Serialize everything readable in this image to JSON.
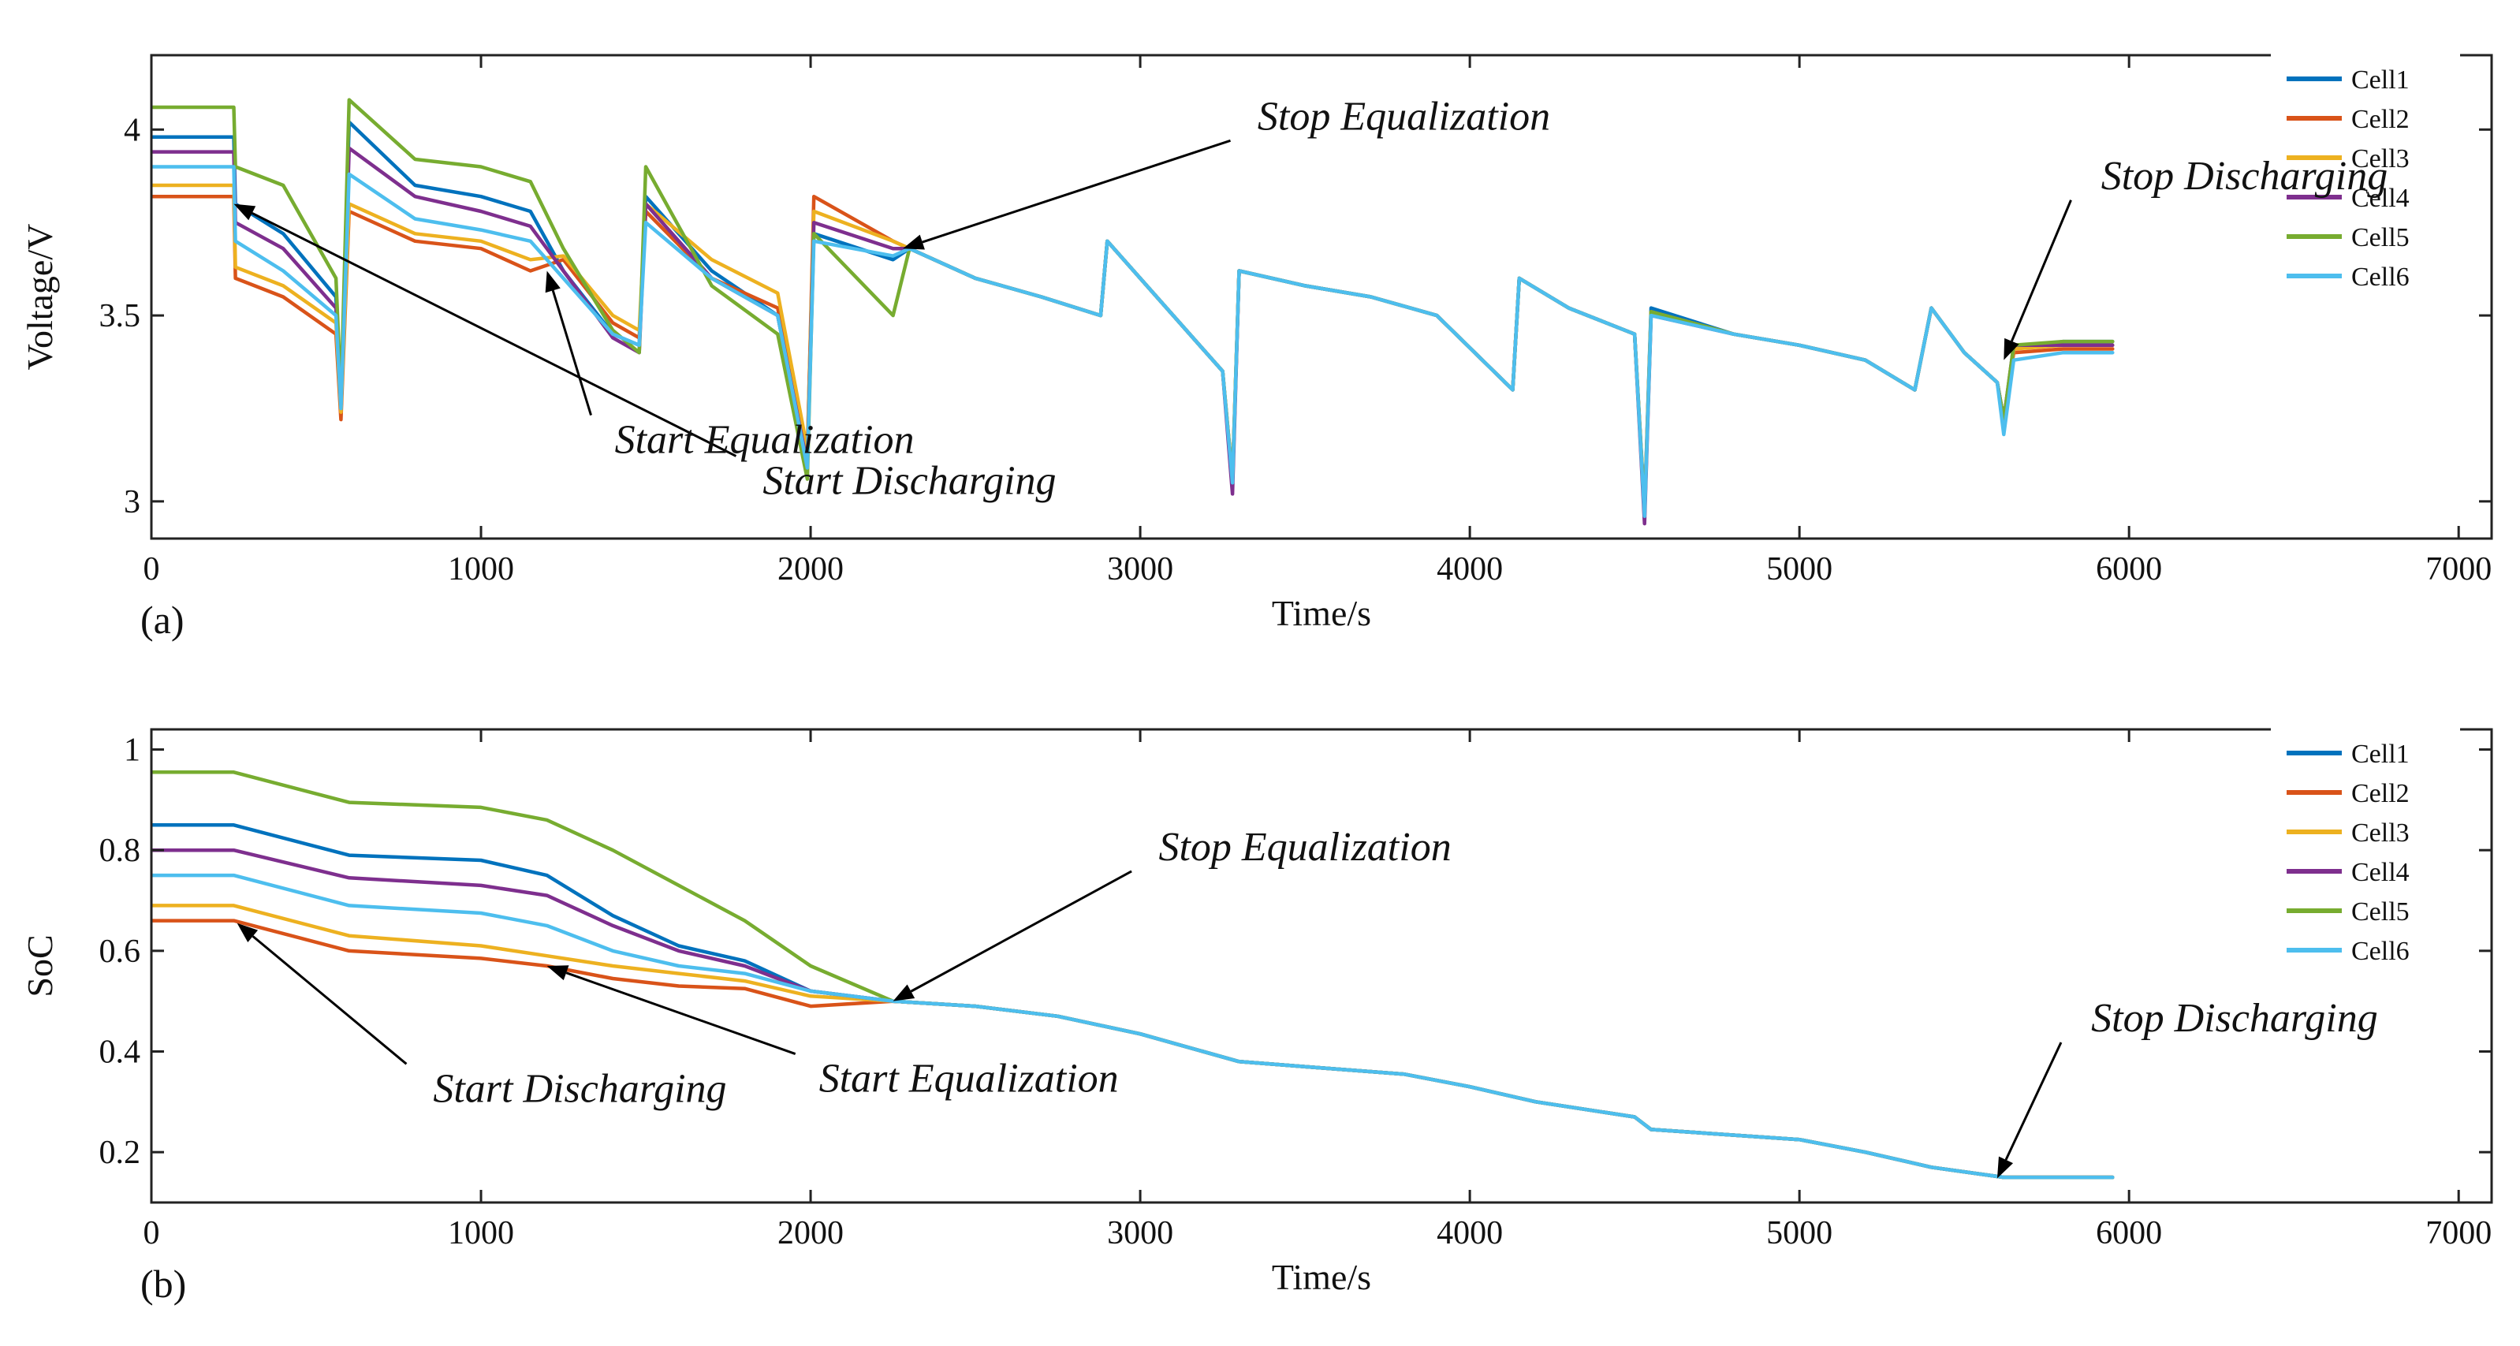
{
  "colors": {
    "Cell1": "#0072BD",
    "Cell2": "#D95319",
    "Cell3": "#EDB120",
    "Cell4": "#7E2F8E",
    "Cell5": "#77AC30",
    "Cell6": "#4DBEEE"
  },
  "chart_data": [
    {
      "type": "line",
      "panel_label": "(a)",
      "title": "",
      "xlabel": "Time/s",
      "ylabel": "Voltage/V",
      "xlim": [
        0,
        7100
      ],
      "ylim": [
        2.9,
        4.2
      ],
      "xticks": [
        0,
        1000,
        2000,
        3000,
        4000,
        5000,
        6000,
        7000
      ],
      "yticks": [
        3,
        3.5,
        4
      ],
      "ytick_labels": [
        "3",
        "3.5",
        "4"
      ],
      "legend_position": "right",
      "series": [
        {
          "name": "Cell1",
          "x": [
            0,
            250,
            255,
            400,
            560,
            575,
            600,
            800,
            1000,
            1150,
            1250,
            1400,
            1480,
            1500,
            1700,
            1900,
            1990,
            2010,
            2250,
            2300,
            2500,
            2700,
            2880,
            2900,
            3250,
            3280,
            3300,
            3500,
            3700,
            3900,
            4130,
            4150,
            4300,
            4500,
            4530,
            4550,
            4800,
            5000,
            5200,
            5350,
            5400,
            5500,
            5600,
            5620,
            5650,
            5800,
            5950
          ],
          "y": [
            3.98,
            3.98,
            3.8,
            3.72,
            3.55,
            3.25,
            4.02,
            3.85,
            3.82,
            3.78,
            3.62,
            3.45,
            3.42,
            3.82,
            3.62,
            3.5,
            3.1,
            3.72,
            3.65,
            3.68,
            3.6,
            3.55,
            3.5,
            3.7,
            3.35,
            3.05,
            3.62,
            3.58,
            3.55,
            3.5,
            3.3,
            3.6,
            3.52,
            3.45,
            2.98,
            3.52,
            3.45,
            3.42,
            3.38,
            3.3,
            3.52,
            3.4,
            3.32,
            3.22,
            3.41,
            3.43,
            3.43
          ]
        },
        {
          "name": "Cell2",
          "x": [
            0,
            250,
            255,
            400,
            560,
            575,
            600,
            800,
            1000,
            1150,
            1250,
            1400,
            1480,
            1500,
            1700,
            1900,
            1990,
            2010,
            2250,
            2300,
            2500,
            2700,
            2880,
            2900,
            3250,
            3280,
            3300,
            3500,
            3700,
            3900,
            4130,
            4150,
            4300,
            4500,
            4530,
            4550,
            4800,
            5000,
            5200,
            5350,
            5400,
            5500,
            5600,
            5620,
            5650,
            5800,
            5950
          ],
          "y": [
            3.82,
            3.82,
            3.6,
            3.55,
            3.45,
            3.22,
            3.78,
            3.7,
            3.68,
            3.62,
            3.65,
            3.48,
            3.44,
            3.78,
            3.6,
            3.52,
            3.12,
            3.82,
            3.7,
            3.68,
            3.6,
            3.55,
            3.5,
            3.7,
            3.35,
            3.06,
            3.62,
            3.58,
            3.55,
            3.5,
            3.3,
            3.6,
            3.52,
            3.45,
            2.97,
            3.51,
            3.45,
            3.42,
            3.38,
            3.3,
            3.52,
            3.4,
            3.32,
            3.22,
            3.4,
            3.41,
            3.41
          ]
        },
        {
          "name": "Cell3",
          "x": [
            0,
            250,
            255,
            400,
            560,
            575,
            600,
            800,
            1000,
            1150,
            1250,
            1400,
            1480,
            1500,
            1700,
            1900,
            1990,
            2010,
            2250,
            2300,
            2500,
            2700,
            2880,
            2900,
            3250,
            3280,
            3300,
            3500,
            3700,
            3900,
            4130,
            4150,
            4300,
            4500,
            4530,
            4550,
            4800,
            5000,
            5200,
            5350,
            5400,
            5500,
            5600,
            5620,
            5650,
            5800,
            5950
          ],
          "y": [
            3.85,
            3.85,
            3.63,
            3.58,
            3.48,
            3.24,
            3.8,
            3.72,
            3.7,
            3.65,
            3.66,
            3.5,
            3.46,
            3.8,
            3.65,
            3.56,
            3.14,
            3.78,
            3.7,
            3.68,
            3.6,
            3.55,
            3.5,
            3.7,
            3.35,
            3.06,
            3.62,
            3.58,
            3.55,
            3.5,
            3.3,
            3.6,
            3.52,
            3.45,
            2.97,
            3.51,
            3.45,
            3.42,
            3.38,
            3.3,
            3.52,
            3.4,
            3.32,
            3.22,
            3.41,
            3.42,
            3.42
          ]
        },
        {
          "name": "Cell4",
          "x": [
            0,
            250,
            255,
            400,
            560,
            575,
            600,
            800,
            1000,
            1150,
            1250,
            1400,
            1480,
            1500,
            1700,
            1900,
            1990,
            2010,
            2250,
            2300,
            2500,
            2700,
            2880,
            2900,
            3250,
            3280,
            3300,
            3500,
            3700,
            3900,
            4130,
            4150,
            4300,
            4500,
            4530,
            4550,
            4800,
            5000,
            5200,
            5350,
            5400,
            5500,
            5600,
            5620,
            5650,
            5800,
            5950
          ],
          "y": [
            3.94,
            3.94,
            3.75,
            3.68,
            3.52,
            3.26,
            3.95,
            3.82,
            3.78,
            3.74,
            3.62,
            3.44,
            3.4,
            3.8,
            3.6,
            3.5,
            3.1,
            3.75,
            3.68,
            3.68,
            3.6,
            3.55,
            3.5,
            3.7,
            3.35,
            3.02,
            3.62,
            3.58,
            3.55,
            3.5,
            3.3,
            3.6,
            3.52,
            3.45,
            2.94,
            3.5,
            3.45,
            3.42,
            3.38,
            3.3,
            3.52,
            3.4,
            3.32,
            3.22,
            3.42,
            3.42,
            3.42
          ]
        },
        {
          "name": "Cell5",
          "x": [
            0,
            250,
            255,
            400,
            560,
            575,
            600,
            800,
            1000,
            1150,
            1250,
            1400,
            1480,
            1500,
            1700,
            1900,
            1990,
            2010,
            2250,
            2300,
            2500,
            2700,
            2880,
            2900,
            3250,
            3280,
            3300,
            3500,
            3700,
            3900,
            4130,
            4150,
            4300,
            4500,
            4530,
            4550,
            4800,
            5000,
            5200,
            5350,
            5400,
            5500,
            5600,
            5620,
            5650,
            5800,
            5950
          ],
          "y": [
            4.06,
            4.06,
            3.9,
            3.85,
            3.6,
            3.28,
            4.08,
            3.92,
            3.9,
            3.86,
            3.68,
            3.46,
            3.4,
            3.9,
            3.58,
            3.45,
            3.06,
            3.72,
            3.5,
            3.68,
            3.6,
            3.55,
            3.5,
            3.7,
            3.35,
            3.06,
            3.62,
            3.58,
            3.55,
            3.5,
            3.3,
            3.6,
            3.52,
            3.45,
            2.97,
            3.51,
            3.45,
            3.42,
            3.38,
            3.3,
            3.52,
            3.4,
            3.32,
            3.22,
            3.42,
            3.43,
            3.43
          ]
        },
        {
          "name": "Cell6",
          "x": [
            0,
            250,
            255,
            400,
            560,
            575,
            600,
            800,
            1000,
            1150,
            1250,
            1400,
            1480,
            1500,
            1700,
            1900,
            1990,
            2010,
            2250,
            2300,
            2500,
            2700,
            2880,
            2900,
            3250,
            3280,
            3300,
            3500,
            3700,
            3900,
            4130,
            4150,
            4300,
            4500,
            4530,
            4550,
            4800,
            5000,
            5200,
            5350,
            5400,
            5500,
            5600,
            5620,
            5650,
            5800,
            5950
          ],
          "y": [
            3.9,
            3.9,
            3.7,
            3.62,
            3.5,
            3.25,
            3.88,
            3.76,
            3.73,
            3.7,
            3.6,
            3.45,
            3.42,
            3.75,
            3.6,
            3.5,
            3.09,
            3.7,
            3.66,
            3.68,
            3.6,
            3.55,
            3.5,
            3.7,
            3.35,
            3.05,
            3.62,
            3.58,
            3.55,
            3.5,
            3.3,
            3.6,
            3.52,
            3.45,
            2.96,
            3.5,
            3.45,
            3.42,
            3.38,
            3.3,
            3.52,
            3.4,
            3.32,
            3.18,
            3.38,
            3.4,
            3.4
          ]
        }
      ],
      "annotations": [
        {
          "text": "Start Discharging",
          "point": [
            250,
            3.8
          ],
          "label_at": [
            2300,
            3.02
          ]
        },
        {
          "text": "Start Equalization",
          "point": [
            1200,
            3.62
          ],
          "label_at": [
            1860,
            3.13
          ]
        },
        {
          "text": "Stop Equalization",
          "point": [
            2280,
            3.68
          ],
          "label_at": [
            3800,
            4.0
          ]
        },
        {
          "text": "Stop Discharging",
          "point": [
            5620,
            3.38
          ],
          "label_at": [
            6350,
            3.84
          ]
        }
      ]
    },
    {
      "type": "line",
      "panel_label": "(b)",
      "title": "",
      "xlabel": "Time/s",
      "ylabel": "SoC",
      "xlim": [
        0,
        7100
      ],
      "ylim": [
        0.1,
        1.04
      ],
      "xticks": [
        0,
        1000,
        2000,
        3000,
        4000,
        5000,
        6000,
        7000
      ],
      "yticks": [
        0.2,
        0.4,
        0.6,
        0.8,
        1
      ],
      "ytick_labels": [
        "0.2",
        "0.4",
        "0.6",
        "0.8",
        "1"
      ],
      "legend_position": "right",
      "series": [
        {
          "name": "Cell1",
          "x": [
            0,
            250,
            600,
            1000,
            1200,
            1400,
            1600,
            1800,
            2000,
            2250,
            2500,
            2750,
            3000,
            3300,
            3500,
            3800,
            4000,
            4200,
            4500,
            4550,
            5000,
            5200,
            5400,
            5620,
            5950
          ],
          "y": [
            0.85,
            0.85,
            0.79,
            0.78,
            0.75,
            0.67,
            0.61,
            0.58,
            0.52,
            0.5,
            0.49,
            0.47,
            0.435,
            0.38,
            0.37,
            0.355,
            0.33,
            0.3,
            0.27,
            0.245,
            0.225,
            0.2,
            0.17,
            0.15,
            0.15
          ]
        },
        {
          "name": "Cell2",
          "x": [
            0,
            250,
            600,
            1000,
            1200,
            1400,
            1600,
            1800,
            2000,
            2250,
            2500,
            2750,
            3000,
            3300,
            3500,
            3800,
            4000,
            4200,
            4500,
            4550,
            5000,
            5200,
            5400,
            5620,
            5950
          ],
          "y": [
            0.66,
            0.66,
            0.6,
            0.585,
            0.57,
            0.545,
            0.53,
            0.525,
            0.49,
            0.5,
            0.49,
            0.47,
            0.435,
            0.38,
            0.37,
            0.355,
            0.33,
            0.3,
            0.27,
            0.245,
            0.225,
            0.2,
            0.17,
            0.15,
            0.15
          ]
        },
        {
          "name": "Cell3",
          "x": [
            0,
            250,
            600,
            1000,
            1200,
            1400,
            1600,
            1800,
            2000,
            2250,
            2500,
            2750,
            3000,
            3300,
            3500,
            3800,
            4000,
            4200,
            4500,
            4550,
            5000,
            5200,
            5400,
            5620,
            5950
          ],
          "y": [
            0.69,
            0.69,
            0.63,
            0.61,
            0.59,
            0.57,
            0.555,
            0.54,
            0.51,
            0.5,
            0.49,
            0.47,
            0.435,
            0.38,
            0.37,
            0.355,
            0.33,
            0.3,
            0.27,
            0.245,
            0.225,
            0.2,
            0.17,
            0.15,
            0.15
          ]
        },
        {
          "name": "Cell4",
          "x": [
            0,
            250,
            600,
            1000,
            1200,
            1400,
            1600,
            1800,
            2000,
            2250,
            2500,
            2750,
            3000,
            3300,
            3500,
            3800,
            4000,
            4200,
            4500,
            4550,
            5000,
            5200,
            5400,
            5620,
            5950
          ],
          "y": [
            0.8,
            0.8,
            0.745,
            0.73,
            0.71,
            0.65,
            0.6,
            0.57,
            0.52,
            0.5,
            0.49,
            0.47,
            0.435,
            0.38,
            0.37,
            0.355,
            0.33,
            0.3,
            0.27,
            0.245,
            0.225,
            0.2,
            0.17,
            0.15,
            0.15
          ]
        },
        {
          "name": "Cell5",
          "x": [
            0,
            250,
            600,
            1000,
            1200,
            1400,
            1600,
            1800,
            2000,
            2250,
            2500,
            2750,
            3000,
            3300,
            3500,
            3800,
            4000,
            4200,
            4500,
            4550,
            5000,
            5200,
            5400,
            5620,
            5950
          ],
          "y": [
            0.955,
            0.955,
            0.895,
            0.885,
            0.86,
            0.8,
            0.73,
            0.66,
            0.57,
            0.5,
            0.49,
            0.47,
            0.435,
            0.38,
            0.37,
            0.355,
            0.33,
            0.3,
            0.27,
            0.245,
            0.225,
            0.2,
            0.17,
            0.15,
            0.15
          ]
        },
        {
          "name": "Cell6",
          "x": [
            0,
            250,
            600,
            1000,
            1200,
            1400,
            1600,
            1800,
            2000,
            2250,
            2500,
            2750,
            3000,
            3300,
            3500,
            3800,
            4000,
            4200,
            4500,
            4550,
            5000,
            5200,
            5400,
            5620,
            5950
          ],
          "y": [
            0.75,
            0.75,
            0.69,
            0.675,
            0.65,
            0.6,
            0.57,
            0.555,
            0.52,
            0.5,
            0.49,
            0.47,
            0.435,
            0.38,
            0.37,
            0.355,
            0.33,
            0.3,
            0.27,
            0.245,
            0.225,
            0.2,
            0.17,
            0.15,
            0.15
          ]
        }
      ],
      "annotations": [
        {
          "text": "Start Discharging",
          "point": [
            260,
            0.655
          ],
          "label_at": [
            1300,
            0.3
          ]
        },
        {
          "text": "Start Equalization",
          "point": [
            1200,
            0.57
          ],
          "label_at": [
            2480,
            0.32
          ]
        },
        {
          "text": "Stop Equalization",
          "point": [
            2250,
            0.5
          ],
          "label_at": [
            3500,
            0.78
          ]
        },
        {
          "text": "Stop Discharging",
          "point": [
            5600,
            0.148
          ],
          "label_at": [
            6320,
            0.44
          ]
        }
      ]
    }
  ]
}
